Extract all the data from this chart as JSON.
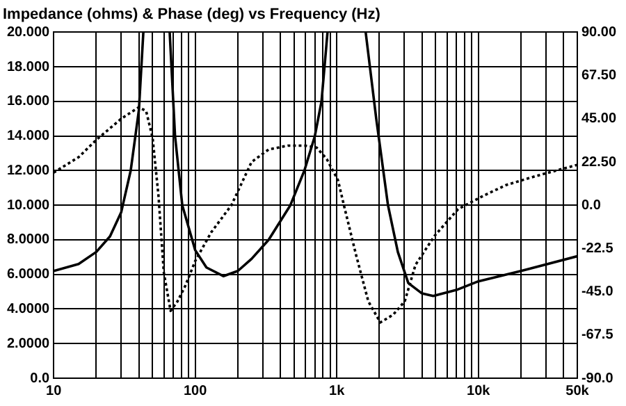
{
  "chart_data": {
    "type": "line",
    "title": "Impedance (ohms) & Phase (deg) vs Frequency (Hz)",
    "log": "x",
    "grid": true,
    "legend": false,
    "marker": "none",
    "xlim": [
      10,
      50000
    ],
    "xticks": [
      10,
      {
        "value": 20,
        "label": null
      },
      {
        "value": 30,
        "label": null
      },
      {
        "value": 40,
        "label": null
      },
      {
        "value": 50,
        "label": null
      },
      {
        "value": 60,
        "label": null
      },
      {
        "value": 70,
        "label": null
      },
      {
        "value": 80,
        "label": null
      },
      {
        "value": 90,
        "label": null
      },
      100,
      {
        "value": 200,
        "label": null
      },
      {
        "value": 300,
        "label": null
      },
      {
        "value": 400,
        "label": null
      },
      {
        "value": 500,
        "label": null
      },
      {
        "value": 600,
        "label": null
      },
      {
        "value": 700,
        "label": null
      },
      {
        "value": 800,
        "label": null
      },
      {
        "value": 900,
        "label": null
      },
      {
        "value": 1000,
        "label": "1k"
      },
      {
        "value": 2000,
        "label": null
      },
      {
        "value": 3000,
        "label": null
      },
      {
        "value": 4000,
        "label": null
      },
      {
        "value": 5000,
        "label": null
      },
      {
        "value": 6000,
        "label": null
      },
      {
        "value": 7000,
        "label": null
      },
      {
        "value": 8000,
        "label": null
      },
      {
        "value": 9000,
        "label": null
      },
      {
        "value": 10000,
        "label": "10k"
      },
      {
        "value": 20000,
        "label": null
      },
      {
        "value": 30000,
        "label": null
      },
      {
        "value": 40000,
        "label": null
      },
      {
        "value": 50000,
        "label": "50k"
      }
    ],
    "ylim": [
      0,
      20
    ],
    "yticks": [
      {
        "value": 0,
        "label": "0.0"
      },
      {
        "value": 2,
        "label": "2.0000"
      },
      {
        "value": 4,
        "label": "4.0000"
      },
      {
        "value": 6,
        "label": "6.0000"
      },
      {
        "value": 8,
        "label": "8.0000"
      },
      {
        "value": 10,
        "label": "10.000"
      },
      {
        "value": 12,
        "label": "12.000"
      },
      {
        "value": 14,
        "label": "14.000"
      },
      {
        "value": 16,
        "label": "16.000"
      },
      {
        "value": 18,
        "label": "18.000"
      },
      {
        "value": 20,
        "label": "20.000"
      }
    ],
    "y2lim": [
      -90,
      90
    ],
    "y2ticks": [
      {
        "value": -90,
        "label": "-90.0"
      },
      {
        "value": -67.5,
        "label": "-67.5"
      },
      {
        "value": -45,
        "label": "-45.0"
      },
      {
        "value": -22.5,
        "label": "-22.5"
      },
      {
        "value": 0,
        "label": "0.0"
      },
      {
        "value": 22.5,
        "label": "22.50"
      },
      {
        "value": 45,
        "label": "45.00"
      },
      {
        "value": 67.5,
        "label": "67.50"
      },
      {
        "value": 90,
        "label": "90.00"
      }
    ],
    "series": [
      {
        "color": "#000000",
        "line_style": "solid",
        "x": [
          10,
          15,
          20,
          25,
          30,
          35,
          40,
          43,
          null,
          66,
          72,
          81,
          100,
          120,
          158,
          200,
          250,
          330,
          470,
          590,
          700,
          780,
          860,
          null,
          1600,
          1900,
          2300,
          2700,
          3200,
          4000,
          4800,
          7000,
          10000,
          20000,
          50000
        ],
        "values": [
          6.2,
          6.6,
          7.3,
          8.2,
          9.6,
          12,
          15.5,
          20,
          null,
          20,
          14,
          10,
          7.4,
          6.4,
          5.9,
          6.2,
          6.9,
          8,
          10,
          12,
          14,
          16,
          20,
          null,
          20,
          15,
          10,
          7.3,
          5.5,
          4.9,
          4.75,
          5.1,
          5.6,
          6.2,
          7.05
        ]
      },
      {
        "color": "#000000",
        "line_style": "dotted",
        "axis": "y2",
        "x": [
          10,
          15,
          20,
          30,
          40,
          45,
          50,
          55,
          60,
          67,
          75,
          85,
          100,
          130,
          180,
          250,
          330,
          450,
          600,
          720,
          850,
          1020,
          1140,
          1370,
          1670,
          2030,
          2500,
          3020,
          3600,
          4900,
          7200,
          10900,
          15700,
          25000,
          50000
        ],
        "values": [
          17,
          25,
          34,
          45,
          51,
          49,
          35,
          5,
          -35,
          -55,
          -50,
          -42,
          -29,
          -14,
          0,
          22.5,
          29,
          31,
          31,
          30,
          24,
          13,
          -2,
          -26,
          -50,
          -61,
          -57,
          -50,
          -31,
          -16,
          -2,
          5,
          10.5,
          15,
          21
        ]
      }
    ]
  }
}
